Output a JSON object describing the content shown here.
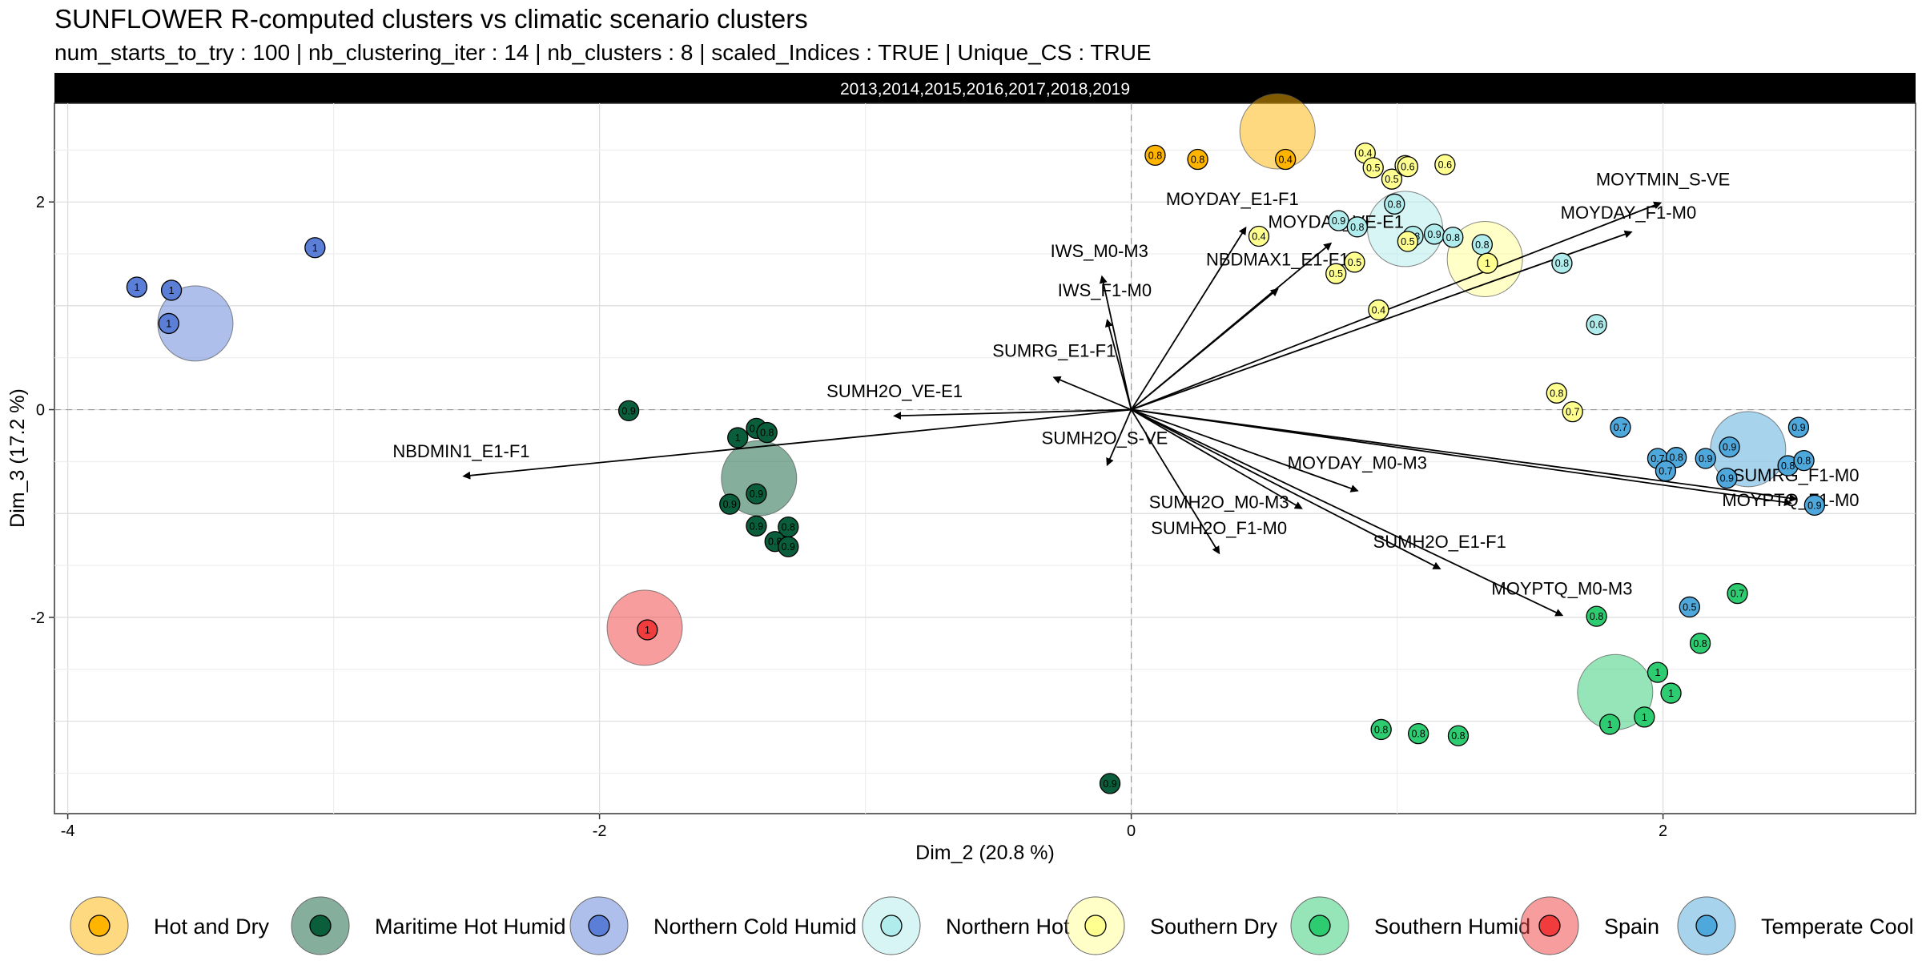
{
  "chart_data": {
    "type": "scatter",
    "title": "SUNFLOWER R-computed clusters vs climatic scenario clusters",
    "subtitle": "num_starts_to_try : 100 | nb_clustering_iter : 14 | nb_clusters : 8 | scaled_Indices : TRUE | Unique_CS : TRUE",
    "facet_label": "2013,2014,2015,2016,2017,2018,2019",
    "xlabel": "Dim_2 (20.8 %)",
    "ylabel": "Dim_3 (17.2 %)",
    "xlim": [
      -4.05,
      2.95
    ],
    "ylim": [
      -3.89,
      2.95
    ],
    "x_ticks": [
      -4,
      -2,
      0,
      2
    ],
    "y_ticks": [
      2,
      0,
      -2
    ],
    "x_tick_labels": [
      "-4",
      "-2",
      "0",
      "2"
    ],
    "y_tick_labels": [
      "2",
      "0",
      "-2"
    ],
    "grid": true,
    "legend_position": "bottom",
    "legend": [
      {
        "name": "Hot and Dry",
        "color": "#FFB400"
      },
      {
        "name": "Maritime Hot Humid",
        "color": "#0B5E3C"
      },
      {
        "name": "Northern Cold Humid",
        "color": "#5B7FD6"
      },
      {
        "name": "Northern Hot",
        "color": "#B0ECEC"
      },
      {
        "name": "Southern Dry",
        "color": "#FFFF90"
      },
      {
        "name": "Southern Humid",
        "color": "#2ECC71"
      },
      {
        "name": "Spain",
        "color": "#F03C3C"
      },
      {
        "name": "Temperate Cool",
        "color": "#4FA8DC"
      }
    ],
    "centroids": [
      {
        "cluster": "Hot and Dry",
        "x": 0.55,
        "y": 2.68
      },
      {
        "cluster": "Maritime Hot Humid",
        "x": -1.4,
        "y": -0.66
      },
      {
        "cluster": "Northern Cold Humid",
        "x": -3.52,
        "y": 0.83
      },
      {
        "cluster": "Northern Hot",
        "x": 1.03,
        "y": 1.74
      },
      {
        "cluster": "Southern Dry",
        "x": 1.33,
        "y": 1.45
      },
      {
        "cluster": "Southern Humid",
        "x": 1.82,
        "y": -2.72
      },
      {
        "cluster": "Spain",
        "x": -1.83,
        "y": -2.1
      },
      {
        "cluster": "Temperate Cool",
        "x": 2.32,
        "y": -0.38
      }
    ],
    "points": [
      {
        "cluster": "Hot and Dry",
        "x": 0.09,
        "y": 2.45,
        "label": "0.8"
      },
      {
        "cluster": "Hot and Dry",
        "x": 0.25,
        "y": 2.41,
        "label": "0.8"
      },
      {
        "cluster": "Hot and Dry",
        "x": 0.58,
        "y": 2.41,
        "label": "0.4"
      },
      {
        "cluster": "Northern Cold Humid",
        "x": -3.74,
        "y": 1.18,
        "label": "1"
      },
      {
        "cluster": "Northern Cold Humid",
        "x": -3.61,
        "y": 1.15,
        "label": "1"
      },
      {
        "cluster": "Northern Cold Humid",
        "x": -3.62,
        "y": 0.83,
        "label": "1"
      },
      {
        "cluster": "Northern Cold Humid",
        "x": -3.07,
        "y": 1.56,
        "label": "1"
      },
      {
        "cluster": "Maritime Hot Humid",
        "x": -1.89,
        "y": -0.01,
        "label": "0.9"
      },
      {
        "cluster": "Maritime Hot Humid",
        "x": -1.48,
        "y": -0.27,
        "label": "1"
      },
      {
        "cluster": "Maritime Hot Humid",
        "x": -1.41,
        "y": -0.18,
        "label": "0.8"
      },
      {
        "cluster": "Maritime Hot Humid",
        "x": -1.37,
        "y": -0.22,
        "label": "0.8"
      },
      {
        "cluster": "Maritime Hot Humid",
        "x": -1.51,
        "y": -0.91,
        "label": "0.9"
      },
      {
        "cluster": "Maritime Hot Humid",
        "x": -1.41,
        "y": -0.81,
        "label": "0.9"
      },
      {
        "cluster": "Maritime Hot Humid",
        "x": -1.41,
        "y": -1.12,
        "label": "0.9"
      },
      {
        "cluster": "Maritime Hot Humid",
        "x": -1.29,
        "y": -1.13,
        "label": "0.8"
      },
      {
        "cluster": "Maritime Hot Humid",
        "x": -1.34,
        "y": -1.27,
        "label": "0.8"
      },
      {
        "cluster": "Maritime Hot Humid",
        "x": -1.29,
        "y": -1.32,
        "label": "0.9"
      },
      {
        "cluster": "Maritime Hot Humid",
        "x": -0.08,
        "y": -3.6,
        "label": "0.9"
      },
      {
        "cluster": "Spain",
        "x": -1.82,
        "y": -2.12,
        "label": "1"
      },
      {
        "cluster": "Northern Hot",
        "x": 0.78,
        "y": 1.82,
        "label": "0.9"
      },
      {
        "cluster": "Northern Hot",
        "x": 0.85,
        "y": 1.76,
        "label": "0.8"
      },
      {
        "cluster": "Northern Hot",
        "x": 0.99,
        "y": 1.98,
        "label": "0.8"
      },
      {
        "cluster": "Northern Hot",
        "x": 1.06,
        "y": 1.67,
        "label": "0.8"
      },
      {
        "cluster": "Northern Hot",
        "x": 1.14,
        "y": 1.69,
        "label": "0.9"
      },
      {
        "cluster": "Northern Hot",
        "x": 1.21,
        "y": 1.66,
        "label": "0.8"
      },
      {
        "cluster": "Northern Hot",
        "x": 1.32,
        "y": 1.59,
        "label": "0.8"
      },
      {
        "cluster": "Northern Hot",
        "x": 1.62,
        "y": 1.41,
        "label": "0.8"
      },
      {
        "cluster": "Northern Hot",
        "x": 1.75,
        "y": 0.82,
        "label": "0.6"
      },
      {
        "cluster": "Southern Dry",
        "x": 0.88,
        "y": 2.47,
        "label": "0.4"
      },
      {
        "cluster": "Southern Dry",
        "x": 0.91,
        "y": 2.33,
        "label": "0.5"
      },
      {
        "cluster": "Southern Dry",
        "x": 0.98,
        "y": 2.22,
        "label": "0.5"
      },
      {
        "cluster": "Southern Dry",
        "x": 1.03,
        "y": 2.35,
        "label": "0.6"
      },
      {
        "cluster": "Southern Dry",
        "x": 1.04,
        "y": 2.34,
        "label": "0.6"
      },
      {
        "cluster": "Southern Dry",
        "x": 1.18,
        "y": 2.36,
        "label": "0.6"
      },
      {
        "cluster": "Southern Dry",
        "x": 0.48,
        "y": 1.67,
        "label": "0.4"
      },
      {
        "cluster": "Southern Dry",
        "x": 1.04,
        "y": 1.62,
        "label": "0.5"
      },
      {
        "cluster": "Southern Dry",
        "x": 0.77,
        "y": 1.31,
        "label": "0.5"
      },
      {
        "cluster": "Southern Dry",
        "x": 0.84,
        "y": 1.42,
        "label": "0.5"
      },
      {
        "cluster": "Southern Dry",
        "x": 0.93,
        "y": 0.96,
        "label": "0.4"
      },
      {
        "cluster": "Southern Dry",
        "x": 1.34,
        "y": 1.41,
        "label": "1"
      },
      {
        "cluster": "Southern Dry",
        "x": 1.6,
        "y": 0.16,
        "label": "0.8"
      },
      {
        "cluster": "Southern Dry",
        "x": 1.66,
        "y": -0.02,
        "label": "0.7"
      },
      {
        "cluster": "Temperate Cool",
        "x": 1.84,
        "y": -0.17,
        "label": "0.7"
      },
      {
        "cluster": "Temperate Cool",
        "x": 1.98,
        "y": -0.47,
        "label": "0.7"
      },
      {
        "cluster": "Temperate Cool",
        "x": 2.05,
        "y": -0.46,
        "label": "0.8"
      },
      {
        "cluster": "Temperate Cool",
        "x": 2.01,
        "y": -0.59,
        "label": "0.7"
      },
      {
        "cluster": "Temperate Cool",
        "x": 2.16,
        "y": -0.47,
        "label": "0.9"
      },
      {
        "cluster": "Temperate Cool",
        "x": 2.25,
        "y": -0.36,
        "label": "0.9"
      },
      {
        "cluster": "Temperate Cool",
        "x": 2.24,
        "y": -0.66,
        "label": "0.9"
      },
      {
        "cluster": "Temperate Cool",
        "x": 2.47,
        "y": -0.54,
        "label": "0.8"
      },
      {
        "cluster": "Temperate Cool",
        "x": 2.53,
        "y": -0.49,
        "label": "0.8"
      },
      {
        "cluster": "Temperate Cool",
        "x": 2.51,
        "y": -0.17,
        "label": "0.9"
      },
      {
        "cluster": "Temperate Cool",
        "x": 2.57,
        "y": -0.92,
        "label": "0.9"
      },
      {
        "cluster": "Temperate Cool",
        "x": 2.1,
        "y": -1.9,
        "label": "0.5"
      },
      {
        "cluster": "Southern Humid",
        "x": 2.28,
        "y": -1.77,
        "label": "0.7"
      },
      {
        "cluster": "Southern Humid",
        "x": 1.75,
        "y": -1.99,
        "label": "0.8"
      },
      {
        "cluster": "Southern Humid",
        "x": 2.14,
        "y": -2.25,
        "label": "0.8"
      },
      {
        "cluster": "Southern Humid",
        "x": 1.98,
        "y": -2.53,
        "label": "1"
      },
      {
        "cluster": "Southern Humid",
        "x": 2.03,
        "y": -2.73,
        "label": "1"
      },
      {
        "cluster": "Southern Humid",
        "x": 1.8,
        "y": -3.03,
        "label": "1"
      },
      {
        "cluster": "Southern Humid",
        "x": 1.93,
        "y": -2.96,
        "label": "1"
      },
      {
        "cluster": "Southern Humid",
        "x": 0.94,
        "y": -3.08,
        "label": "0.8"
      },
      {
        "cluster": "Southern Humid",
        "x": 1.08,
        "y": -3.12,
        "label": "0.8"
      },
      {
        "cluster": "Southern Humid",
        "x": 1.23,
        "y": -3.14,
        "label": "0.8"
      }
    ],
    "arrows": [
      {
        "name": "MOYTMIN_S-VE",
        "x": 1.99,
        "y": 1.99,
        "label_x": 2.0,
        "label_y": 2.16
      },
      {
        "name": "MOYDAY_F1-M0",
        "x": 1.88,
        "y": 1.71,
        "label_x": 1.87,
        "label_y": 1.84
      },
      {
        "name": "MOYDAY_E1-F1",
        "x": 0.43,
        "y": 1.75,
        "label_x": 0.38,
        "label_y": 1.97
      },
      {
        "name": "MOYDAY_VE-E1",
        "x": 0.75,
        "y": 1.6,
        "label_x": 0.77,
        "label_y": 1.75
      },
      {
        "name": "NBDMAX1_E1-F1",
        "x": 0.55,
        "y": 1.16,
        "label_x": 0.55,
        "label_y": 1.39
      },
      {
        "name": "IWS_M0-M3",
        "x": -0.11,
        "y": 1.28,
        "label_x": -0.12,
        "label_y": 1.47
      },
      {
        "name": "IWS_F1-M0",
        "x": -0.09,
        "y": 0.86,
        "label_x": -0.1,
        "label_y": 1.09
      },
      {
        "name": "SUMRG_E1-F1",
        "x": -0.29,
        "y": 0.31,
        "label_x": -0.29,
        "label_y": 0.51
      },
      {
        "name": "SUMH2O_VE-E1",
        "x": -0.89,
        "y": -0.06,
        "label_x": -0.89,
        "label_y": 0.12
      },
      {
        "name": "NBDMIN1_E1-F1",
        "x": -2.51,
        "y": -0.64,
        "label_x": -2.52,
        "label_y": -0.46
      },
      {
        "name": "SUMH2O_S-VE",
        "x": -0.09,
        "y": -0.53,
        "label_x": -0.1,
        "label_y": -0.33
      },
      {
        "name": "MOYDAY_M0-M3",
        "x": 0.85,
        "y": -0.78,
        "label_x": 0.85,
        "label_y": -0.57
      },
      {
        "name": "SUMH2O_M0-M3",
        "x": 0.64,
        "y": -0.95,
        "label_x": 0.33,
        "label_y": -0.95
      },
      {
        "name": "SUMH2O_F1-M0",
        "x": 0.33,
        "y": -1.38,
        "label_x": 0.33,
        "label_y": -1.2
      },
      {
        "name": "SUMH2O_E1-F1",
        "x": 1.16,
        "y": -1.53,
        "label_x": 1.16,
        "label_y": -1.33
      },
      {
        "name": "MOYPTQ_M0-M3",
        "x": 1.62,
        "y": -1.98,
        "label_x": 1.62,
        "label_y": -1.78
      },
      {
        "name": "SUMRG_F1-M0",
        "x": 2.5,
        "y": -0.86,
        "label_x": 2.5,
        "label_y": -0.69
      },
      {
        "name": "MOYPTQ_F1-M0",
        "x": 2.48,
        "y": -0.9,
        "label_x": 2.48,
        "label_y": -0.93
      }
    ]
  }
}
